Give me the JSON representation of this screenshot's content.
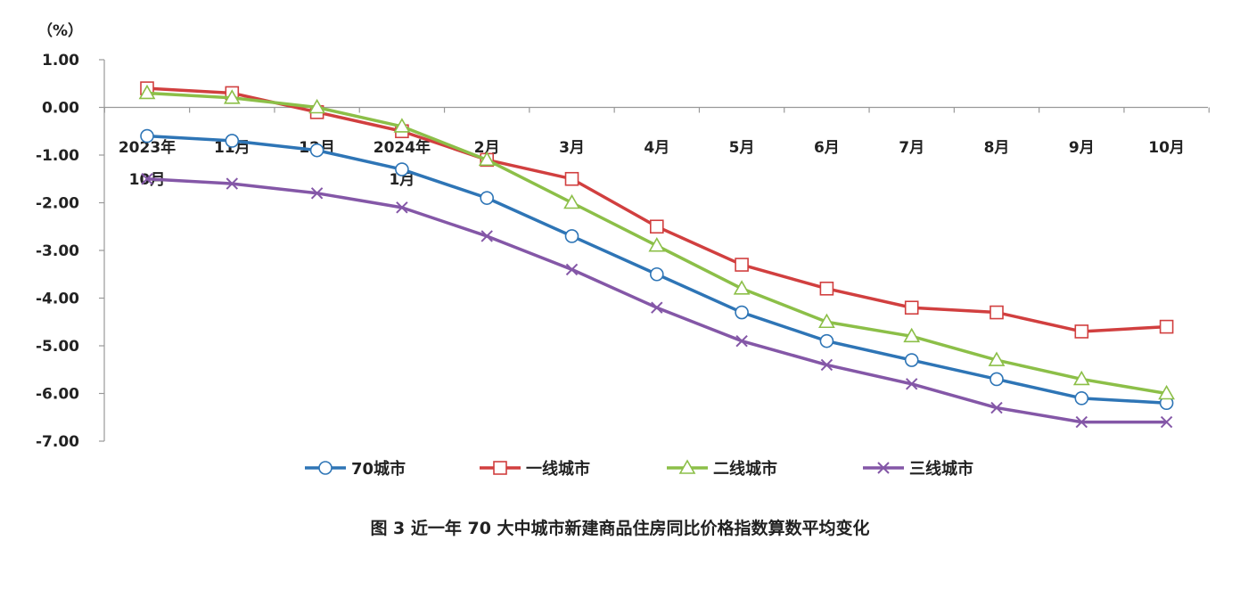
{
  "chart_data": {
    "type": "line",
    "unit_label": "（%）",
    "categories": [
      [
        "2023年",
        "10月"
      ],
      [
        "11月"
      ],
      [
        "12月"
      ],
      [
        "2024年",
        "1月"
      ],
      [
        "2月"
      ],
      [
        "3月"
      ],
      [
        "4月"
      ],
      [
        "5月"
      ],
      [
        "6月"
      ],
      [
        "7月"
      ],
      [
        "8月"
      ],
      [
        "9月"
      ],
      [
        "10月"
      ]
    ],
    "y_ticks": [
      "1.00",
      "0.00",
      "-1.00",
      "-2.00",
      "-3.00",
      "-4.00",
      "-5.00",
      "-6.00",
      "-7.00"
    ],
    "ylim": [
      -7,
      1
    ],
    "legend_position": "bottom",
    "grid": false,
    "series": [
      {
        "name": "70城市",
        "color": "#2e75b6",
        "marker": "circle",
        "values": [
          -0.6,
          -0.7,
          -0.9,
          -1.3,
          -1.9,
          -2.7,
          -3.5,
          -4.3,
          -4.9,
          -5.3,
          -5.7,
          -6.1,
          -6.2
        ]
      },
      {
        "name": "一线城市",
        "color": "#d13f3f",
        "marker": "square",
        "values": [
          0.4,
          0.3,
          -0.1,
          -0.5,
          -1.1,
          -1.5,
          -2.5,
          -3.3,
          -3.8,
          -4.2,
          -4.3,
          -4.7,
          -4.6
        ]
      },
      {
        "name": "二线城市",
        "color": "#8cbf48",
        "marker": "triangle",
        "values": [
          0.3,
          0.2,
          0.0,
          -0.4,
          -1.1,
          -2.0,
          -2.9,
          -3.8,
          -4.5,
          -4.8,
          -5.3,
          -5.7,
          -6.0
        ]
      },
      {
        "name": "三线城市",
        "color": "#8457a7",
        "marker": "x",
        "values": [
          -1.5,
          -1.6,
          -1.8,
          -2.1,
          -2.7,
          -3.4,
          -4.2,
          -4.9,
          -5.4,
          -5.8,
          -6.3,
          -6.6,
          -6.6
        ]
      }
    ]
  },
  "caption": "图 3  近一年 70 大中城市新建商品住房同比价格指数算数平均变化"
}
